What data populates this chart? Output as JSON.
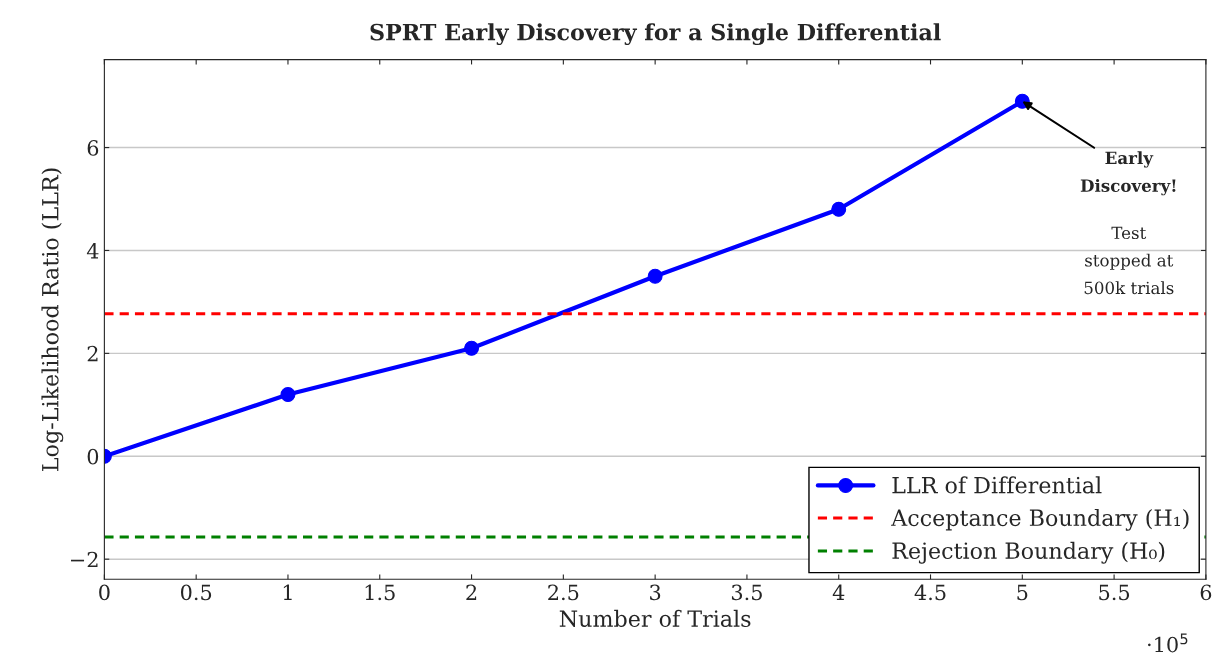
{
  "chart_data": {
    "type": "line",
    "title": "SPRT Early Discovery for a Single Differential",
    "xlabel": "Number of Trials",
    "ylabel": "Log-Likelihood Ratio (LLR)",
    "x": [
      0,
      1,
      2,
      3,
      4,
      5
    ],
    "series": [
      {
        "name": "LLR of Differential",
        "color": "#0000ff",
        "values": [
          0,
          1.2,
          2.1,
          3.5,
          4.8,
          6.9
        ]
      }
    ],
    "ref_lines": [
      {
        "axis": "y",
        "value": 2.77,
        "label": "Acceptance Boundary (H₁)",
        "color": "#ff0000",
        "line_style": "dashed"
      },
      {
        "axis": "y",
        "value": -1.57,
        "label": "Rejection Boundary (H₀)",
        "color": "#008000",
        "line_style": "dashed"
      }
    ],
    "annotations": [
      {
        "text": "Early Discovery!",
        "x": 5,
        "y": 6.9
      },
      "Test stopped at 500k trials",
      "·10$^{5}$"
    ],
    "xlim": [
      0,
      6
    ],
    "xticks": [
      0,
      0.5,
      1,
      1.5,
      2,
      2.5,
      3,
      3.5,
      4,
      4.5,
      5,
      5.5,
      6
    ],
    "ylim": [
      -2.39,
      7.71
    ],
    "yticks": [
      {
        "value": -2,
        "label": "−2"
      },
      0,
      2,
      4,
      6
    ],
    "grid": "y",
    "legend": "bottom right",
    "marker": "circle",
    "line_style": "solid"
  }
}
